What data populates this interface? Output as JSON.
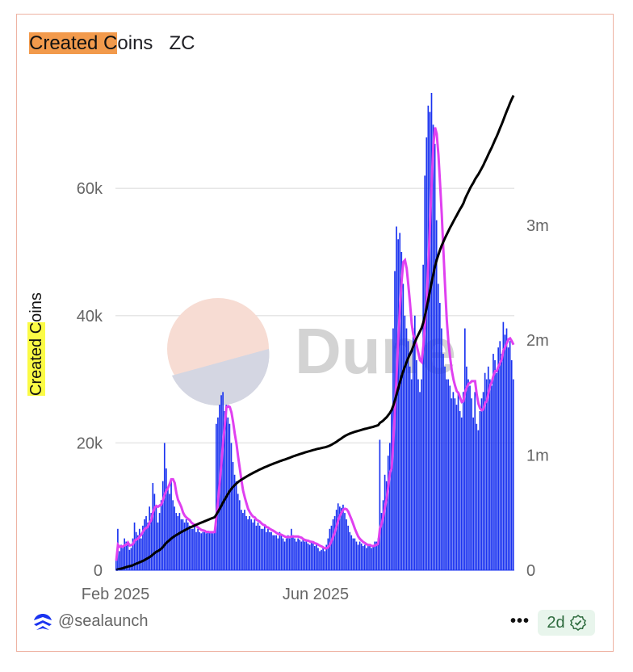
{
  "title": {
    "highlighted": "Created C",
    "rest": "oins",
    "suffix": "ZC"
  },
  "watermark": "Dune",
  "footer": {
    "user": "@sealaunch",
    "more_label": "•••",
    "badge": "2d",
    "logo_icon": "sealaunch-logo-icon",
    "verified_icon": "verified-badge-icon"
  },
  "colors": {
    "bars": "#1a33f0",
    "moving_average": "#e040f0",
    "cumulative": "#000000",
    "title_highlight": "#f29a4c",
    "label_highlight": "#fbfb45",
    "badge_bg": "#e8f5ec"
  },
  "chart_data": {
    "type": "bar",
    "title": "Created Coins   ZC",
    "ylabel": "Created Coins",
    "ylabel_highlighted": "Created C",
    "ylabel_rest": "oins",
    "x_start": "2025-02-01",
    "x_frequency": "daily",
    "x_ticks": [
      {
        "label": "Feb 2025",
        "date": "2025-02-01"
      },
      {
        "label": "Jun 2025",
        "date": "2025-06-01"
      }
    ],
    "ylim": [
      0,
      75000
    ],
    "y_ticks": [
      {
        "label": "0",
        "value": 0
      },
      {
        "label": "20k",
        "value": 20000
      },
      {
        "label": "40k",
        "value": 40000
      },
      {
        "label": "60k",
        "value": 60000
      }
    ],
    "y2lim": [
      0,
      4150000
    ],
    "y2_ticks": [
      {
        "label": "0",
        "value": 0
      },
      {
        "label": "1m",
        "value": 1000000
      },
      {
        "label": "2m",
        "value": 2000000
      },
      {
        "label": "3m",
        "value": 3000000
      }
    ],
    "grid": true,
    "series": [
      {
        "type": "bar",
        "axis": "left",
        "values": [
          1500,
          6500,
          3000,
          4000,
          3500,
          5000,
          4500,
          4000,
          3200,
          3500,
          5000,
          7500,
          6000,
          5500,
          6500,
          5000,
          7000,
          8000,
          8500,
          7500,
          10000,
          9000,
          13700,
          12000,
          10000,
          7500,
          9000,
          11000,
          14000,
          20000,
          16000,
          13000,
          12000,
          14000,
          11000,
          10000,
          9000,
          8500,
          9000,
          8000,
          8000,
          7500,
          8000,
          7500,
          7000,
          6500,
          6500,
          7000,
          6000,
          6500,
          6000,
          5800,
          6000,
          6000,
          5800,
          6200,
          6000,
          6000,
          5800,
          6200,
          23000,
          24000,
          26000,
          27500,
          28000,
          25000,
          26000,
          24000,
          23000,
          20000,
          17000,
          15000,
          14000,
          12000,
          11000,
          9500,
          9000,
          9500,
          8500,
          8000,
          8500,
          8000,
          7500,
          8000,
          7000,
          7500,
          7000,
          6500,
          6500,
          7000,
          6000,
          6500,
          6000,
          6000,
          5500,
          5500,
          5500,
          5000,
          6000,
          5500,
          5000,
          4500,
          5000,
          5500,
          5000,
          6500,
          5500,
          5000,
          4500,
          5000,
          4800,
          4500,
          5000,
          4500,
          4500,
          4200,
          4000,
          4500,
          4200,
          3800,
          4000,
          3500,
          3000,
          3200,
          3500,
          3000,
          4000,
          5000,
          6500,
          7000,
          8000,
          8500,
          9500,
          10500,
          10000,
          9800,
          10300,
          9000,
          8000,
          7000,
          6000,
          5500,
          5000,
          5000,
          4500,
          4000,
          4500,
          4200,
          3800,
          4000,
          3500,
          3800,
          4000,
          3500,
          4000,
          4500,
          4500,
          5000,
          20500,
          9000,
          11000,
          15000,
          14000,
          18000,
          20000,
          25000,
          38000,
          47000,
          54000,
          52000,
          53000,
          50000,
          45000,
          40000,
          38000,
          36000,
          32000,
          30000,
          38000,
          40000,
          33000,
          30000,
          28000,
          30000,
          48000,
          62000,
          68000,
          73000,
          72000,
          75000,
          70000,
          67000,
          55000,
          45000,
          42000,
          38000,
          34000,
          32000,
          30000,
          30000,
          29000,
          27000,
          28000,
          27000,
          26000,
          28000,
          25000,
          24000,
          28000,
          38000,
          32000,
          30000,
          29000,
          27000,
          24000,
          28000,
          23000,
          22000,
          25000,
          27000,
          28000,
          31000,
          30000,
          32000,
          30000,
          29000,
          34000,
          33000,
          31000,
          35000,
          36000,
          34000,
          39000,
          37000,
          38000,
          35000,
          36000,
          33000,
          30000
        ]
      },
      {
        "type": "line",
        "axis": "left",
        "derived": "7-day moving average of bars"
      },
      {
        "type": "line",
        "axis": "right",
        "derived": "cumulative sum of bars"
      }
    ]
  }
}
